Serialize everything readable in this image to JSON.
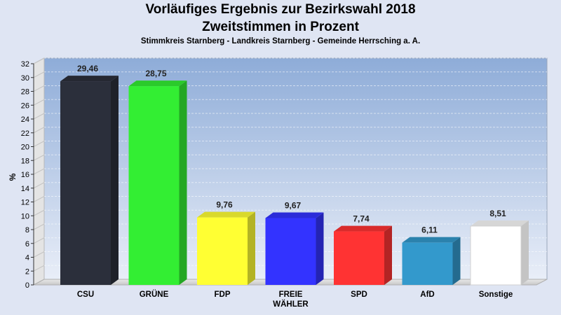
{
  "header": {
    "title_line1": "Vorläufiges Ergebnis zur Bezirkswahl 2018",
    "title_line2": "Zweitstimmen in Prozent",
    "subtitle": "Stimmkreis Starnberg - Landkreis Starnberg - Gemeinde Herrsching a. A."
  },
  "chart_data": {
    "type": "bar",
    "title": "Vorläufiges Ergebnis zur Bezirkswahl 2018 Zweitstimmen in Prozent",
    "subtitle": "Stimmkreis Starnberg - Landkreis Starnberg - Gemeinde Herrsching a. A.",
    "categories": [
      "CSU",
      "GRÜNE",
      "FDP",
      "FREIE WÄHLER",
      "SPD",
      "AfD",
      "Sonstige"
    ],
    "category_lines": [
      [
        "CSU"
      ],
      [
        "GRÜNE"
      ],
      [
        "FDP"
      ],
      [
        "FREIE",
        "WÄHLER"
      ],
      [
        "SPD"
      ],
      [
        "AfD"
      ],
      [
        "Sonstige"
      ]
    ],
    "values": [
      29.46,
      28.75,
      9.76,
      9.67,
      7.74,
      6.11,
      8.51
    ],
    "value_labels": [
      "29,46",
      "28,75",
      "9,76",
      "9,67",
      "7,74",
      "6,11",
      "8,51"
    ],
    "colors": [
      "#2b2f3b",
      "#33ee33",
      "#ffff33",
      "#3333ff",
      "#ff3333",
      "#3399cc",
      "#ffffff"
    ],
    "ylabel": "%",
    "xlabel": "",
    "ylim": [
      0,
      32
    ],
    "yticks": [
      0,
      2,
      4,
      6,
      8,
      10,
      12,
      14,
      16,
      18,
      20,
      22,
      24,
      26,
      28,
      30,
      32
    ],
    "grid": true,
    "legend": "none"
  }
}
